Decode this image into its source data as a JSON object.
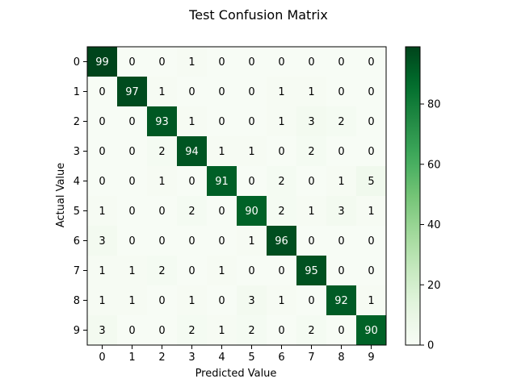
{
  "chart_data": {
    "type": "heatmap",
    "title": "Test Confusion Matrix",
    "xlabel": "Predicted Value",
    "ylabel": "Actual Value",
    "x_categories": [
      "0",
      "1",
      "2",
      "3",
      "4",
      "5",
      "6",
      "7",
      "8",
      "9"
    ],
    "y_categories": [
      "0",
      "1",
      "2",
      "3",
      "4",
      "5",
      "6",
      "7",
      "8",
      "9"
    ],
    "values": [
      [
        99,
        0,
        0,
        1,
        0,
        0,
        0,
        0,
        0,
        0
      ],
      [
        0,
        97,
        1,
        0,
        0,
        0,
        1,
        1,
        0,
        0
      ],
      [
        0,
        0,
        93,
        1,
        0,
        0,
        1,
        3,
        2,
        0
      ],
      [
        0,
        0,
        2,
        94,
        1,
        1,
        0,
        2,
        0,
        0
      ],
      [
        0,
        0,
        1,
        0,
        91,
        0,
        2,
        0,
        1,
        5
      ],
      [
        1,
        0,
        0,
        2,
        0,
        90,
        2,
        1,
        3,
        1
      ],
      [
        3,
        0,
        0,
        0,
        0,
        1,
        96,
        0,
        0,
        0
      ],
      [
        1,
        1,
        2,
        0,
        1,
        0,
        0,
        95,
        0,
        0
      ],
      [
        1,
        1,
        0,
        1,
        0,
        3,
        1,
        0,
        92,
        1
      ],
      [
        3,
        0,
        0,
        2,
        1,
        2,
        0,
        2,
        0,
        90
      ]
    ],
    "colormap": "Greens",
    "colorbar": {
      "range": [
        0,
        99
      ],
      "ticks": [
        0,
        20,
        40,
        60,
        80
      ]
    },
    "grid": false
  }
}
